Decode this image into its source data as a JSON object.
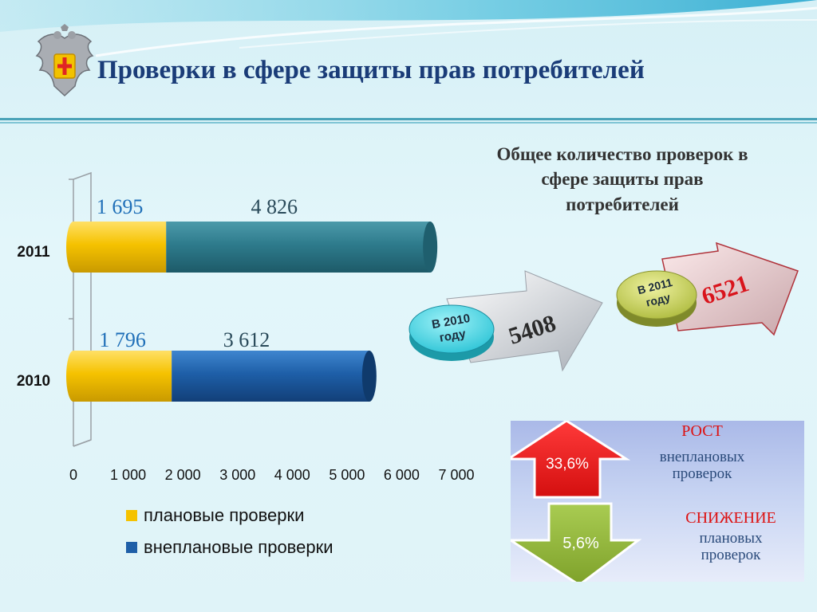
{
  "header": {
    "title": "Проверки в сфере защиты прав потребителей"
  },
  "chart_data": {
    "type": "bar",
    "orientation": "horizontal",
    "stacked": true,
    "categories": [
      "2011",
      "2010"
    ],
    "series": [
      {
        "name": "плановые проверки",
        "values": [
          1695,
          1796
        ],
        "labels": [
          "1 695",
          "1 796"
        ],
        "color": "#f5c200"
      },
      {
        "name": "внеплановые проверки",
        "values": [
          4826,
          3612
        ],
        "labels": [
          "4 826",
          "3 612"
        ],
        "color": "#1e5fa8"
      }
    ],
    "bar_colors_2011": [
      "#f5c200",
      "#2e7b8c"
    ],
    "xlim": [
      0,
      7000
    ],
    "xticks": [
      "0",
      "1 000",
      "2 000",
      "3 000",
      "4 000",
      "5 000",
      "6 000",
      "7 000"
    ],
    "legend": [
      "плановые проверки",
      "внеплановые проверки"
    ],
    "legend_position": "bottom"
  },
  "summary": {
    "title_lines": [
      "Общее количество проверок в",
      "сфере защиты прав",
      "потребителей"
    ],
    "year_2010": {
      "badge_line1": "В 2010",
      "badge_line2": "году",
      "value": "5408"
    },
    "year_2011": {
      "badge_line1": "В 2011",
      "badge_line2": "году",
      "value": "6521"
    }
  },
  "stats": {
    "growth_label": "РОСТ",
    "growth_value": "33,6%",
    "growth_desc_1": "внеплановых",
    "growth_desc_2": "проверок",
    "decline_label": "СНИЖЕНИЕ",
    "decline_value": "5,6%",
    "decline_desc_1": "плановых",
    "decline_desc_2": "проверок"
  },
  "colors": {
    "title": "#1a3c78",
    "red": "#e01b1b",
    "green": "#8db43a",
    "cyan_badge": "#4fd7e3",
    "olive_badge": "#c8d35a"
  }
}
